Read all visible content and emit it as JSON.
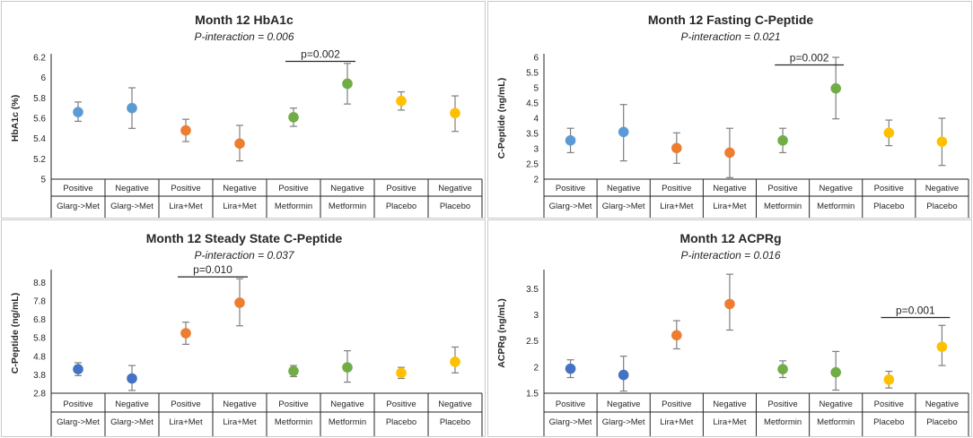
{
  "chart_data": [
    {
      "type": "scatter",
      "title": "Month 12 HbA1c",
      "subtitle": "P-interaction = 0.006",
      "ylabel": "HbA1c (%)",
      "ylim": [
        5,
        6.2
      ],
      "yticks": [
        5,
        5.2,
        5.4,
        5.6,
        5.8,
        6,
        6.2
      ],
      "ytick_labels": [
        "5",
        "5.2",
        "5.4",
        "5.6",
        "5.8",
        "6",
        "6.2"
      ],
      "categories": [
        {
          "top": "Positive",
          "bottom": "Glarg->Met"
        },
        {
          "top": "Negative",
          "bottom": "Glarg->Met"
        },
        {
          "top": "Positive",
          "bottom": "Lira+Met"
        },
        {
          "top": "Negative",
          "bottom": "Lira+Met"
        },
        {
          "top": "Positive",
          "bottom": "Metformin"
        },
        {
          "top": "Negative",
          "bottom": "Metformin"
        },
        {
          "top": "Positive",
          "bottom": "Placebo"
        },
        {
          "top": "Negative",
          "bottom": "Placebo"
        }
      ],
      "values": [
        5.66,
        5.7,
        5.48,
        5.35,
        5.61,
        5.94,
        5.77,
        5.65
      ],
      "err_low": [
        5.57,
        5.5,
        5.37,
        5.18,
        5.52,
        5.74,
        5.68,
        5.47
      ],
      "err_high": [
        5.76,
        5.9,
        5.59,
        5.53,
        5.7,
        6.14,
        5.86,
        5.82
      ],
      "colors": [
        "#5b9bd5",
        "#5b9bd5",
        "#ed7d31",
        "#ed7d31",
        "#70ad47",
        "#70ad47",
        "#ffc000",
        "#ffc000"
      ],
      "annotation": {
        "text": "p=0.002",
        "from": 4,
        "to": 5,
        "y": 6.16
      }
    },
    {
      "type": "scatter",
      "title": "Month 12 Fasting C-Peptide",
      "subtitle": "P-interaction = 0.021",
      "ylabel": "C-Peptide (ng/mL)",
      "ylim": [
        2,
        6
      ],
      "yticks": [
        2,
        2.5,
        3,
        3.5,
        4,
        4.5,
        5,
        5.5,
        6
      ],
      "ytick_labels": [
        "2",
        "2.5",
        "3",
        "3.5",
        "4",
        "4.5",
        "5",
        "5.5",
        "6"
      ],
      "categories": [
        {
          "top": "Positive",
          "bottom": "Glarg->Met"
        },
        {
          "top": "Negative",
          "bottom": "Glarg->Met"
        },
        {
          "top": "Positive",
          "bottom": "Lira+Met"
        },
        {
          "top": "Negative",
          "bottom": "Lira+Met"
        },
        {
          "top": "Positive",
          "bottom": "Metformin"
        },
        {
          "top": "Negative",
          "bottom": "Metformin"
        },
        {
          "top": "Positive",
          "bottom": "Placebo"
        },
        {
          "top": "Negative",
          "bottom": "Placebo"
        }
      ],
      "values": [
        3.27,
        3.55,
        3.02,
        2.87,
        3.27,
        4.98,
        3.52,
        3.23
      ],
      "err_low": [
        2.87,
        2.6,
        2.52,
        2.05,
        2.87,
        3.98,
        3.1,
        2.45
      ],
      "err_high": [
        3.67,
        4.45,
        3.52,
        3.67,
        3.67,
        6.0,
        3.94,
        4.0
      ],
      "colors": [
        "#5b9bd5",
        "#5b9bd5",
        "#ed7d31",
        "#ed7d31",
        "#70ad47",
        "#70ad47",
        "#ffc000",
        "#ffc000"
      ],
      "annotation": {
        "text": "p=0.002",
        "from": 4,
        "to": 5,
        "y": 5.75
      }
    },
    {
      "type": "scatter",
      "title": "Month 12 Steady State C-Peptide",
      "subtitle": "P-interaction = 0.037",
      "ylabel": "C-Peptide (ng/mL)",
      "ylim": [
        2.8,
        9.3
      ],
      "yticks": [
        2.8,
        3.8,
        4.8,
        5.8,
        6.8,
        7.8,
        8.8
      ],
      "ytick_labels": [
        "2.8",
        "3.8",
        "4.8",
        "5.8",
        "6.8",
        "7.8",
        "8.8"
      ],
      "categories": [
        {
          "top": "Positive",
          "bottom": "Glarg->Met"
        },
        {
          "top": "Negative",
          "bottom": "Glarg->Met"
        },
        {
          "top": "Positive",
          "bottom": "Lira+Met"
        },
        {
          "top": "Negative",
          "bottom": "Lira+Met"
        },
        {
          "top": "Positive",
          "bottom": "Metformin"
        },
        {
          "top": "Negative",
          "bottom": "Metformin"
        },
        {
          "top": "Positive",
          "bottom": "Placebo"
        },
        {
          "top": "Negative",
          "bottom": "Placebo"
        }
      ],
      "values": [
        4.1,
        3.6,
        6.05,
        7.7,
        4.0,
        4.2,
        3.9,
        4.5
      ],
      "err_low": [
        3.75,
        2.95,
        5.45,
        6.45,
        3.7,
        3.4,
        3.6,
        3.9
      ],
      "err_high": [
        4.45,
        4.3,
        6.65,
        9.0,
        4.3,
        5.1,
        4.2,
        5.3
      ],
      "colors": [
        "#4472c4",
        "#4472c4",
        "#ed7d31",
        "#ed7d31",
        "#70ad47",
        "#70ad47",
        "#ffc000",
        "#ffc000"
      ],
      "annotation": {
        "text": "p=0.010",
        "from": 2,
        "to": 3,
        "y": 9.1
      }
    },
    {
      "type": "scatter",
      "title": "Month 12 ACPRg",
      "subtitle": "P-interaction = 0.016",
      "ylabel": "ACPRg (ng/mL)",
      "ylim": [
        1.5,
        3.8
      ],
      "yticks": [
        1.5,
        2,
        2.5,
        3,
        3.5
      ],
      "ytick_labels": [
        "1.5",
        "2",
        "2.5",
        "3",
        "3.5"
      ],
      "categories": [
        {
          "top": "Positive",
          "bottom": "Glarg->Met"
        },
        {
          "top": "Negative",
          "bottom": "Glarg->Met"
        },
        {
          "top": "Positive",
          "bottom": "Lira+Met"
        },
        {
          "top": "Negative",
          "bottom": "Lira+Met"
        },
        {
          "top": "Positive",
          "bottom": "Metformin"
        },
        {
          "top": "Negative",
          "bottom": "Metformin"
        },
        {
          "top": "Positive",
          "bottom": "Placebo"
        },
        {
          "top": "Negative",
          "bottom": "Placebo"
        }
      ],
      "values": [
        1.97,
        1.85,
        2.61,
        3.21,
        1.96,
        1.9,
        1.76,
        2.39
      ],
      "err_low": [
        1.8,
        1.54,
        2.35,
        2.71,
        1.8,
        1.56,
        1.6,
        2.03
      ],
      "err_high": [
        2.14,
        2.21,
        2.89,
        3.78,
        2.12,
        2.3,
        1.92,
        2.8
      ],
      "colors": [
        "#4472c4",
        "#4472c4",
        "#ed7d31",
        "#ed7d31",
        "#70ad47",
        "#70ad47",
        "#ffc000",
        "#ffc000"
      ],
      "annotation": {
        "text": "p=0.001",
        "from": 6,
        "to": 7,
        "y": 2.95
      }
    }
  ]
}
